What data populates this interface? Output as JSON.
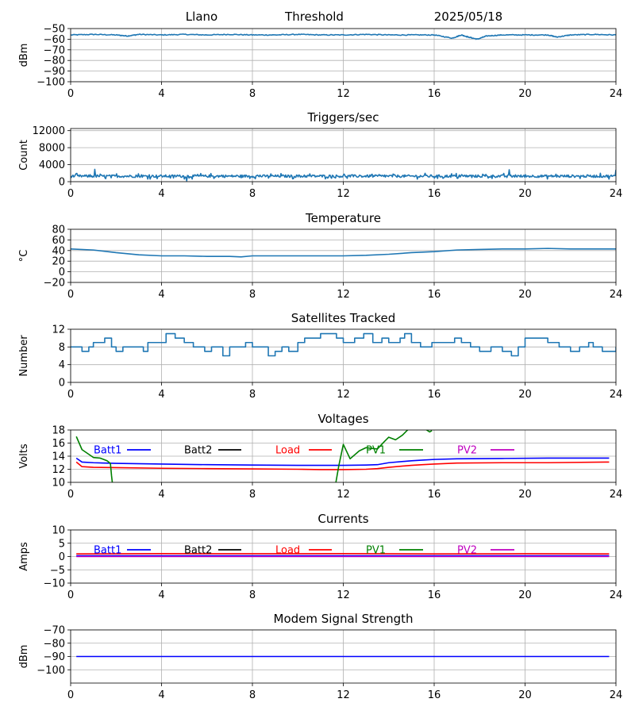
{
  "chart_data": [
    {
      "type": "line",
      "title_parts": [
        "Llano",
        "Threshold",
        "2025/05/18"
      ],
      "ylabel": "dBm",
      "xlim": [
        0,
        24
      ],
      "ylim": [
        -100,
        -50
      ],
      "x_ticks": [
        "0",
        "4",
        "8",
        "12",
        "16",
        "20",
        "24"
      ],
      "y_ticks": [
        {
          "v": -50,
          "label": "−50"
        },
        {
          "v": -60,
          "label": "−60"
        },
        {
          "v": -70,
          "label": "−70"
        },
        {
          "v": -80,
          "label": "−80"
        },
        {
          "v": -90,
          "label": "−90"
        },
        {
          "v": -100,
          "label": "−100"
        }
      ],
      "grid": true,
      "series": [
        {
          "color": "#1f77b4",
          "x": [
            0,
            1,
            2,
            2.5,
            3,
            4,
            5,
            6,
            7,
            8,
            9,
            10,
            11,
            12,
            13,
            14,
            15,
            16,
            16.8,
            17.2,
            17.5,
            17.9,
            18.3,
            19,
            20,
            21,
            21.4,
            22,
            23,
            24
          ],
          "y": [
            -56,
            -55.5,
            -56,
            -57,
            -55.5,
            -56,
            -55.5,
            -56,
            -55.5,
            -56,
            -56,
            -55.5,
            -56,
            -56,
            -55.5,
            -56,
            -56,
            -56,
            -59,
            -56,
            -58,
            -60,
            -57,
            -56,
            -56,
            -56,
            -58,
            -56,
            -55.5,
            -56
          ]
        }
      ]
    },
    {
      "type": "line",
      "title": "Triggers/sec",
      "ylabel": "Count",
      "xlim": [
        0,
        24
      ],
      "ylim": [
        0,
        12500
      ],
      "x_ticks": [
        "0",
        "4",
        "8",
        "12",
        "16",
        "20",
        "24"
      ],
      "y_ticks": [
        {
          "v": 0,
          "label": "0"
        },
        {
          "v": 4000,
          "label": "4000"
        },
        {
          "v": 8000,
          "label": "8000"
        },
        {
          "v": 12000,
          "label": "12000"
        }
      ],
      "grid": true,
      "series": [
        {
          "color": "#1f77b4",
          "noise": {
            "base": 1300,
            "amp": 500,
            "spikes": [
              [
                1.05,
                2900
              ],
              [
                5.1,
                200
              ],
              [
                14.2,
                1800
              ],
              [
                19.3,
                2800
              ],
              [
                24,
                2800
              ]
            ]
          }
        }
      ]
    },
    {
      "type": "line",
      "title": "Temperature",
      "ylabel": "°C",
      "xlim": [
        0,
        24
      ],
      "ylim": [
        -20,
        80
      ],
      "x_ticks": [
        "0",
        "4",
        "8",
        "12",
        "16",
        "20",
        "24"
      ],
      "y_ticks": [
        {
          "v": -20,
          "label": "−20"
        },
        {
          "v": 0,
          "label": "0"
        },
        {
          "v": 20,
          "label": "20"
        },
        {
          "v": 40,
          "label": "40"
        },
        {
          "v": 60,
          "label": "60"
        },
        {
          "v": 80,
          "label": "80"
        }
      ],
      "grid": true,
      "series": [
        {
          "color": "#1f77b4",
          "x": [
            0,
            1,
            2,
            3,
            4,
            5,
            6,
            7,
            7.5,
            8,
            10,
            12,
            13,
            14,
            15,
            16,
            17,
            18,
            19,
            20,
            21,
            22,
            23,
            24
          ],
          "y": [
            43,
            41,
            36,
            32,
            30,
            30,
            29,
            29,
            28,
            30,
            30,
            30,
            31,
            33,
            36,
            38,
            41,
            42,
            43,
            43,
            44,
            43,
            43,
            43
          ]
        }
      ]
    },
    {
      "type": "line",
      "title": "Satellites Tracked",
      "ylabel": "Number",
      "xlim": [
        0,
        24
      ],
      "ylim": [
        0,
        12
      ],
      "x_ticks": [
        "0",
        "4",
        "8",
        "12",
        "16",
        "20",
        "24"
      ],
      "y_ticks": [
        {
          "v": 0,
          "label": "0"
        },
        {
          "v": 4,
          "label": "4"
        },
        {
          "v": 8,
          "label": "8"
        },
        {
          "v": 12,
          "label": "12"
        }
      ],
      "grid": true,
      "series": [
        {
          "color": "#1f77b4",
          "step": true,
          "x": [
            0,
            0.3,
            0.5,
            0.8,
            1,
            1.5,
            1.8,
            2,
            2.3,
            3,
            3.2,
            3.4,
            4.2,
            4.6,
            5,
            5.4,
            5.9,
            6.2,
            6.7,
            7,
            7.7,
            8,
            8.4,
            8.7,
            9,
            9.3,
            9.6,
            10,
            10.3,
            11,
            11.7,
            12,
            12.5,
            12.9,
            13.3,
            13.7,
            14,
            14.5,
            14.7,
            15,
            15.4,
            15.9,
            16.5,
            16.9,
            17.2,
            17.6,
            18,
            18.5,
            19,
            19.4,
            19.7,
            20,
            20.5,
            21,
            21.5,
            22,
            22.4,
            22.8,
            23,
            23.4,
            24
          ],
          "y": [
            8,
            8,
            7,
            8,
            9,
            10,
            8,
            7,
            8,
            8,
            7,
            9,
            11,
            10,
            9,
            8,
            7,
            8,
            6,
            8,
            9,
            8,
            8,
            6,
            7,
            8,
            7,
            9,
            10,
            11,
            10,
            9,
            10,
            11,
            9,
            10,
            9,
            10,
            11,
            9,
            8,
            9,
            9,
            10,
            9,
            8,
            7,
            8,
            7,
            6,
            8,
            10,
            10,
            9,
            8,
            7,
            8,
            9,
            8,
            7,
            8
          ]
        }
      ]
    },
    {
      "type": "line",
      "title": "Voltages",
      "ylabel": "Volts",
      "xlim": [
        0,
        24
      ],
      "ylim": [
        10,
        18
      ],
      "x_ticks": [
        "0",
        "4",
        "8",
        "12",
        "16",
        "20",
        "24"
      ],
      "y_ticks": [
        {
          "v": 10,
          "label": "10"
        },
        {
          "v": 12,
          "label": "12"
        },
        {
          "v": 14,
          "label": "14"
        },
        {
          "v": 16,
          "label": "16"
        },
        {
          "v": 18,
          "label": "18"
        }
      ],
      "grid": true,
      "legend": [
        {
          "name": "Batt1",
          "color": "#0000ff"
        },
        {
          "name": "Batt2",
          "color": "#000000"
        },
        {
          "name": "Load",
          "color": "#ff0000"
        },
        {
          "name": "PV1",
          "color": "#008000"
        },
        {
          "name": "PV2",
          "color": "#bf00bf"
        }
      ],
      "series": [
        {
          "color": "#0000ff",
          "x": [
            0.25,
            0.5,
            1,
            2,
            4,
            6,
            8,
            10,
            11,
            12,
            13,
            13.5,
            14,
            15,
            15.5,
            16,
            17,
            19,
            21,
            23.7
          ],
          "y": [
            13.7,
            13.1,
            13.0,
            12.9,
            12.8,
            12.7,
            12.65,
            12.6,
            12.6,
            12.6,
            12.65,
            12.7,
            13.0,
            13.3,
            13.4,
            13.5,
            13.6,
            13.65,
            13.7,
            13.7
          ]
        },
        {
          "color": "#ff0000",
          "x": [
            0.25,
            0.5,
            1,
            2,
            4,
            6,
            8,
            10,
            11,
            12,
            13,
            13.5,
            14,
            15,
            15.5,
            16,
            17,
            19,
            21,
            23.7
          ],
          "y": [
            13.1,
            12.4,
            12.3,
            12.25,
            12.15,
            12.1,
            12.05,
            12.0,
            11.95,
            11.95,
            12.0,
            12.1,
            12.3,
            12.6,
            12.7,
            12.8,
            12.95,
            13.0,
            13.0,
            13.1
          ]
        },
        {
          "color": "#008000",
          "x": [
            0.25,
            0.5,
            1,
            1.3,
            1.6,
            1.75,
            1.8,
            1.85,
            11.65,
            11.8,
            12,
            12.3,
            12.7,
            13,
            13.2,
            13.5,
            13.8,
            14,
            14.3,
            14.6,
            15,
            15.5,
            15.8,
            15.9
          ],
          "y": [
            17.0,
            15.0,
            13.8,
            13.7,
            13.3,
            12.9,
            11.0,
            9.5,
            9.5,
            12.5,
            15.8,
            13.6,
            14.8,
            15.3,
            15.2,
            15.1,
            16.2,
            16.9,
            16.5,
            17.2,
            18.6,
            18.4,
            17.7,
            17.9
          ]
        }
      ]
    },
    {
      "type": "line",
      "title": "Currents",
      "ylabel": "Amps",
      "xlim": [
        0,
        24
      ],
      "ylim": [
        -10,
        10
      ],
      "x_ticks": [
        "0",
        "4",
        "8",
        "12",
        "16",
        "20",
        "24"
      ],
      "y_ticks": [
        {
          "v": -10,
          "label": "−10"
        },
        {
          "v": -5,
          "label": "−5"
        },
        {
          "v": 0,
          "label": "0"
        },
        {
          "v": 5,
          "label": "5"
        },
        {
          "v": 10,
          "label": "10"
        }
      ],
      "grid": true,
      "legend": [
        {
          "name": "Batt1",
          "color": "#0000ff"
        },
        {
          "name": "Batt2",
          "color": "#000000"
        },
        {
          "name": "Load",
          "color": "#ff0000"
        },
        {
          "name": "PV1",
          "color": "#008000"
        },
        {
          "name": "PV2",
          "color": "#bf00bf"
        }
      ],
      "series": [
        {
          "color": "#ff0000",
          "x": [
            0.25,
            4,
            8,
            12,
            16,
            20,
            23.7
          ],
          "y": [
            1.0,
            1.1,
            1.05,
            1.1,
            1.0,
            1.05,
            1.0
          ]
        },
        {
          "color": "#0000ff",
          "x": [
            0.25,
            4,
            8,
            12,
            16,
            20,
            23.7
          ],
          "y": [
            0.3,
            0.3,
            0.3,
            0.3,
            0.3,
            0.3,
            0.3
          ]
        },
        {
          "color": "#bf00bf",
          "x": [
            0.25,
            23.7
          ],
          "y": [
            0.0,
            0.0
          ]
        }
      ]
    },
    {
      "type": "line",
      "title": "Modem Signal Strength",
      "ylabel": "dBm",
      "xlim": [
        0,
        24
      ],
      "ylim": [
        -110,
        -70
      ],
      "x_ticks": [
        "0",
        "4",
        "8",
        "12",
        "16",
        "20",
        "24"
      ],
      "y_ticks": [
        {
          "v": -100,
          "label": "−100"
        },
        {
          "v": -90,
          "label": "−90"
        },
        {
          "v": -80,
          "label": "−80"
        },
        {
          "v": -70,
          "label": "−70"
        }
      ],
      "grid": true,
      "series": [
        {
          "color": "#0000ff",
          "x": [
            0.25,
            23.7
          ],
          "y": [
            -90,
            -90
          ]
        }
      ]
    }
  ]
}
